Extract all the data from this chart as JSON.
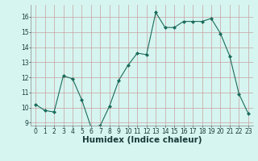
{
  "x": [
    0,
    1,
    2,
    3,
    4,
    5,
    6,
    7,
    8,
    9,
    10,
    11,
    12,
    13,
    14,
    15,
    16,
    17,
    18,
    19,
    20,
    21,
    22,
    23
  ],
  "y": [
    10.2,
    9.8,
    9.7,
    12.1,
    11.9,
    10.5,
    8.7,
    8.8,
    10.1,
    11.8,
    12.8,
    13.6,
    13.5,
    16.3,
    15.3,
    15.3,
    15.7,
    15.7,
    15.7,
    15.9,
    14.9,
    13.4,
    10.9,
    9.6
  ],
  "line_color": "#1a6b5a",
  "marker": "D",
  "marker_size": 2.0,
  "bg_color": "#d6f5f0",
  "grid_color": "#c8a0a0",
  "xlabel": "Humidex (Indice chaleur)",
  "xlim": [
    -0.5,
    23.5
  ],
  "ylim": [
    8.8,
    16.8
  ],
  "yticks": [
    9,
    10,
    11,
    12,
    13,
    14,
    15,
    16
  ],
  "xticks": [
    0,
    1,
    2,
    3,
    4,
    5,
    6,
    7,
    8,
    9,
    10,
    11,
    12,
    13,
    14,
    15,
    16,
    17,
    18,
    19,
    20,
    21,
    22,
    23
  ],
  "tick_fontsize": 5.5,
  "xlabel_fontsize": 7.5
}
